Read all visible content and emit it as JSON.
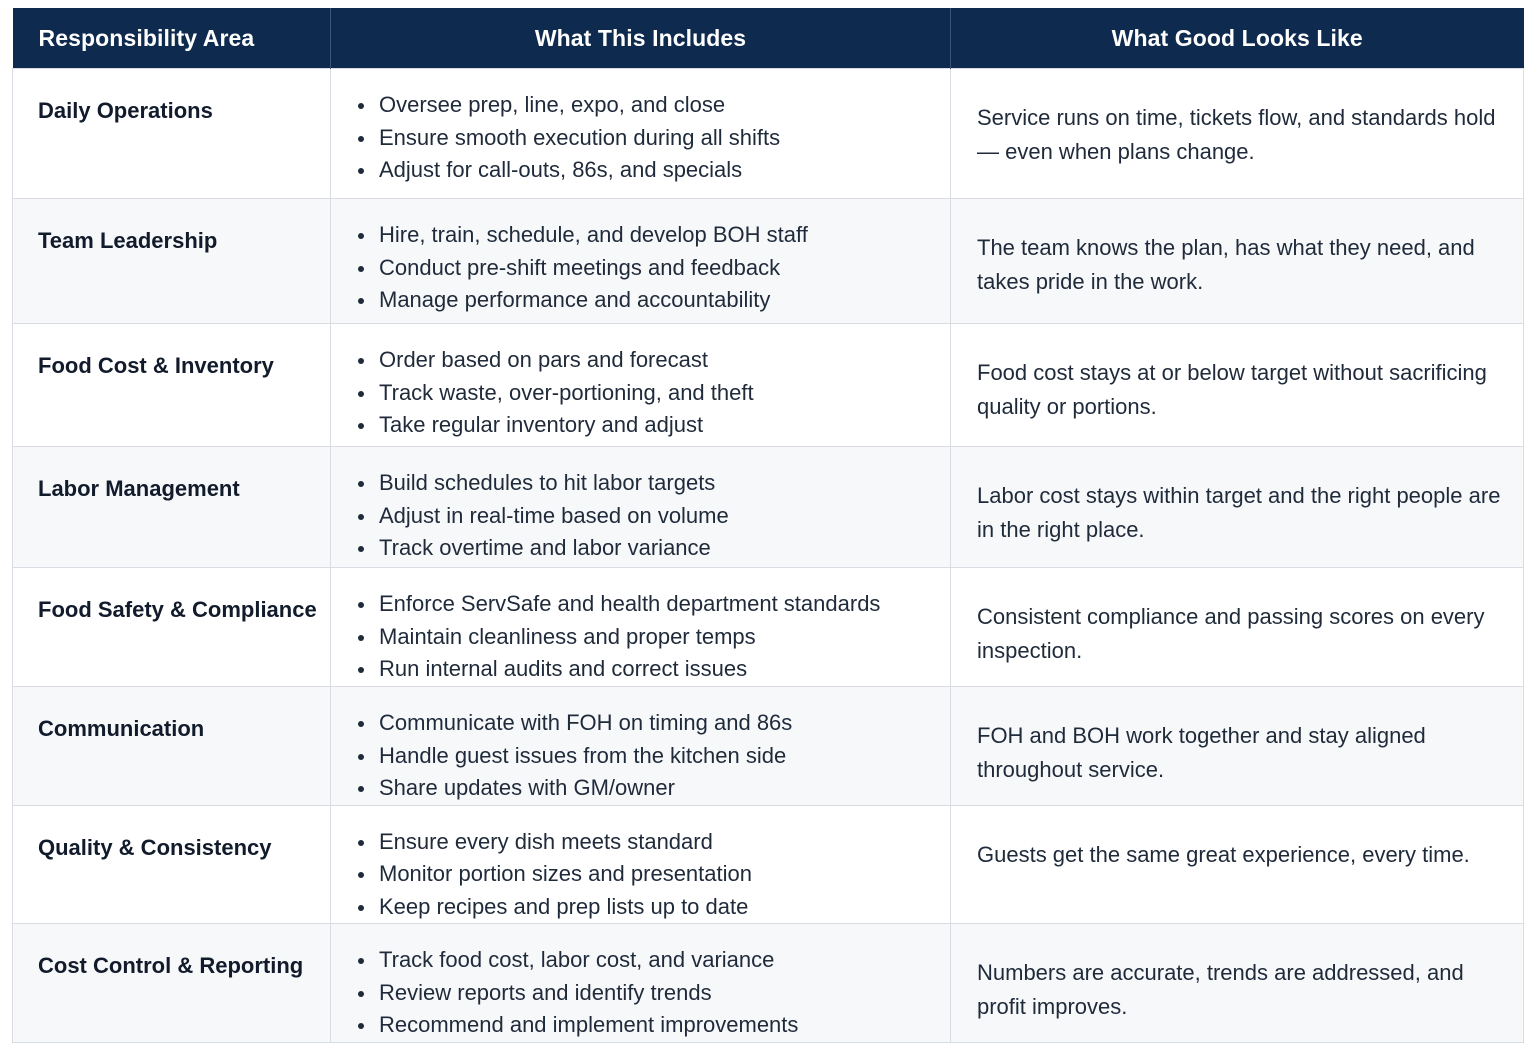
{
  "table": {
    "headers": [
      "Responsibility Area",
      "What This Includes",
      "What Good Looks Like"
    ],
    "rows": [
      {
        "area": "Daily Operations",
        "includes": [
          "Oversee prep, line, expo, and close",
          "Ensure smooth execution during all shifts",
          "Adjust for call-outs, 86s, and specials"
        ],
        "good": "Service runs on time, tickets flow, and standards hold — even when plans change."
      },
      {
        "area": "Team Leadership",
        "includes": [
          "Hire, train, schedule, and develop BOH staff",
          "Conduct pre-shift meetings and feedback",
          "Manage performance and accountability"
        ],
        "good": "The team knows the plan, has what they need, and takes pride in the work."
      },
      {
        "area": "Food Cost & Inventory",
        "includes": [
          "Order based on pars and forecast",
          "Track waste, over-portioning, and theft",
          "Take regular inventory and adjust"
        ],
        "good": "Food cost stays at or below target without sacrificing quality or portions."
      },
      {
        "area": "Labor Management",
        "includes": [
          "Build schedules to hit labor targets",
          "Adjust in real-time based on volume",
          "Track overtime and labor variance"
        ],
        "good": "Labor cost stays within target and the right people are in the right place."
      },
      {
        "area": "Food Safety & Compliance",
        "includes": [
          "Enforce ServSafe and health department standards",
          "Maintain cleanliness and proper temps",
          "Run internal audits and correct issues"
        ],
        "good": "Consistent compliance and passing scores on every inspection."
      },
      {
        "area": "Communication",
        "includes": [
          "Communicate with FOH on timing and 86s",
          "Handle guest issues from the kitchen side",
          "Share updates with GM/owner"
        ],
        "good": "FOH and BOH work together and stay aligned throughout service."
      },
      {
        "area": "Quality & Consistency",
        "includes": [
          "Ensure every dish meets standard",
          "Monitor portion sizes and presentation",
          "Keep recipes and prep lists up to date"
        ],
        "good": "Guests get the same great experience, every time."
      },
      {
        "area": "Cost Control & Reporting",
        "includes": [
          "Track food cost, labor cost, and variance",
          "Review reports and identify trends",
          "Recommend and implement improvements"
        ],
        "good": "Numbers are accurate, trends are addressed, and profit improves."
      }
    ]
  }
}
